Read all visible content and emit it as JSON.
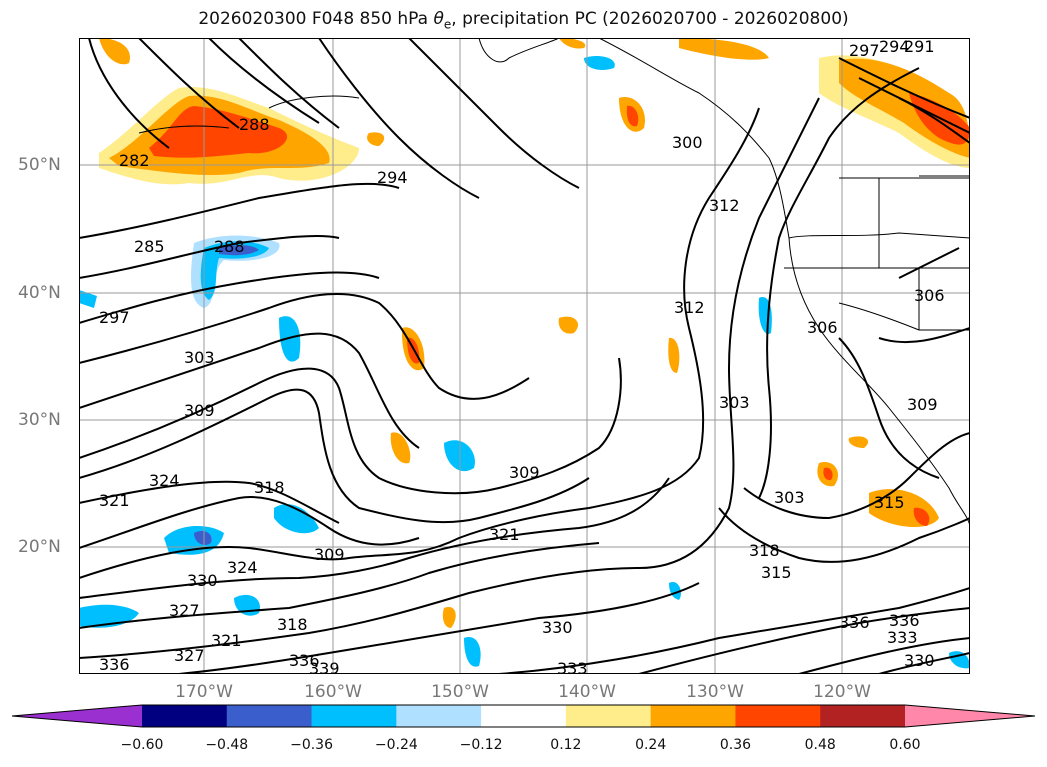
{
  "title": {
    "prefix": "2026020300 F048 850 hPa ",
    "theta": "θ",
    "sub": "e",
    "suffix": ", precipitation PC (2026020700 - 2026020800)"
  },
  "map": {
    "region": "North-East Pacific and western North America",
    "lat_labels": [
      "50°N",
      "40°N",
      "30°N",
      "20°N"
    ],
    "lon_labels": [
      "170°W",
      "160°W",
      "150°W",
      "140°W",
      "130°W",
      "120°W"
    ],
    "contour_labels": [
      "297",
      "294",
      "291",
      "288",
      "285",
      "282",
      "288",
      "294",
      "300",
      "312",
      "312",
      "306",
      "306",
      "309",
      "297",
      "303",
      "309",
      "303",
      "309",
      "324",
      "321",
      "318",
      "318",
      "309",
      "321",
      "315",
      "303",
      "315",
      "330",
      "327",
      "324",
      "321",
      "318",
      "327",
      "336",
      "330",
      "333",
      "336",
      "339",
      "336",
      "336",
      "333",
      "330"
    ]
  },
  "colorbar": {
    "colors": [
      "#9b30d0",
      "#000080",
      "#3a5fcd",
      "#00bfff",
      "#b0e0ff",
      "#ffffff",
      "#ffec8b",
      "#ffa500",
      "#ff4500",
      "#b22222",
      "#ff88aa"
    ],
    "tick_labels": [
      "−0.60",
      "−0.48",
      "−0.36",
      "−0.24",
      "−0.12",
      "0.12",
      "0.24",
      "0.36",
      "0.48",
      "0.60"
    ]
  }
}
